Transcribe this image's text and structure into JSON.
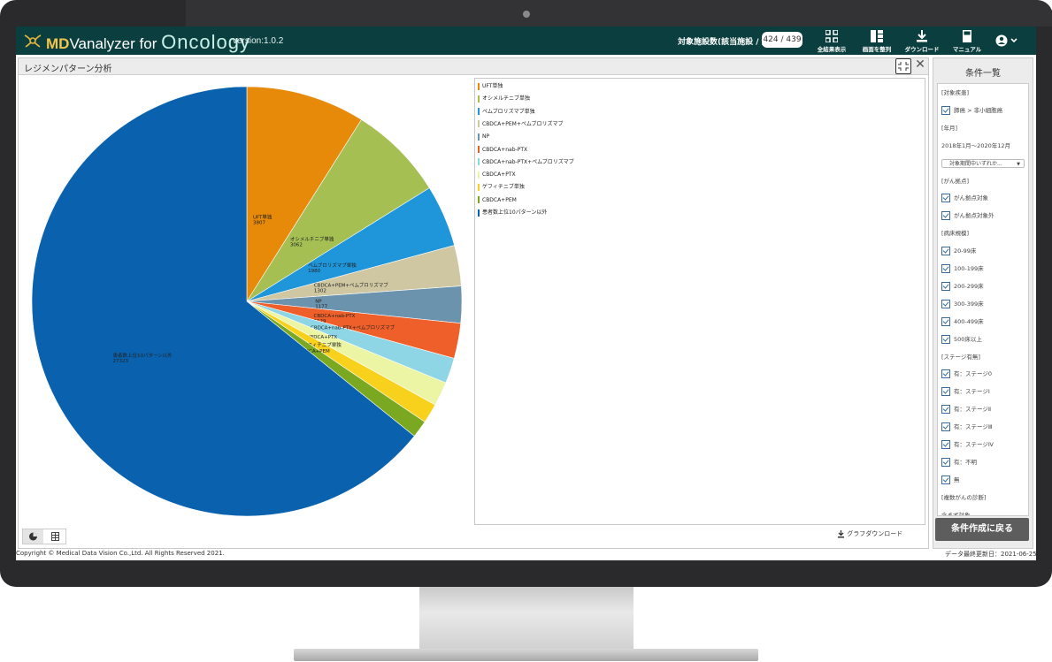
{
  "header": {
    "logo_prefix": "MD",
    "logo_mid": "Vanalyzer for ",
    "logo_brand": "Oncology",
    "version": "version:1.0.2",
    "target_label": "対象施設数(該当施設 / 全体)",
    "target_count": "424 / 439",
    "buttons": [
      {
        "label": "全結果表示",
        "icon": "grid-icon"
      },
      {
        "label": "画面を整列",
        "icon": "layout-icon"
      },
      {
        "label": "ダウンロード",
        "icon": "download-icon"
      },
      {
        "label": "マニュアル",
        "icon": "book-icon"
      }
    ],
    "user_icon": "user-circle-icon"
  },
  "panel": {
    "title": "レジメンパターン分析",
    "graph_download": "グラフダウンロード"
  },
  "chart_data": {
    "type": "pie",
    "title": "",
    "start_angle": "12 o'clock",
    "direction": "clockwise",
    "slices": [
      {
        "label": "UFT単独",
        "value": 3807,
        "color": "#e78a0a"
      },
      {
        "label": "オシメルチニブ単独",
        "value": 3062,
        "color": "#a5bf52"
      },
      {
        "label": "ペムブロリズマブ単独",
        "value": 1980,
        "color": "#1f95da"
      },
      {
        "label": "CBDCA+PEM+ペムブロリズマブ",
        "value": 1302,
        "color": "#cfc7a2"
      },
      {
        "label": "NP",
        "value": 1177,
        "color": "#6b93ae"
      },
      {
        "label": "CBDCA+nab-PTX",
        "value": 1129,
        "color": "#ef5f2a"
      },
      {
        "label": "CBDCA+nab-PTX+ペムブロリズマブ",
        "value": 815,
        "color": "#8ed5e6"
      },
      {
        "label": "CBDCA+PTX",
        "value": 770,
        "color": "#ecf5a4"
      },
      {
        "label": "ゲフィチニブ単独",
        "value": 633,
        "color": "#f8d11c"
      },
      {
        "label": "CBDCA+PEM",
        "value": 553,
        "color": "#7aa820"
      },
      {
        "label": "患者数上位10パターン以外",
        "value": 27323,
        "color": "#0a62af"
      }
    ],
    "slice_labels": [
      {
        "name": "UFT単独",
        "value": "3807"
      },
      {
        "name": "オシメルチニブ単独",
        "value": "3062"
      },
      {
        "name": "ペムブロリズマブ単独",
        "value": "1980"
      },
      {
        "name": "CBDCA+PEM+ペムブロリズマブ",
        "value": "1302"
      },
      {
        "name": "NP",
        "value": "1177"
      },
      {
        "name": "CBDCA+nab-PTX",
        "value": "1129"
      },
      {
        "name": "CBDCA+nab-PTX+ペムブロリズマブ",
        "value": "815"
      },
      {
        "name": "CBDCA+PTX",
        "value": "770"
      },
      {
        "name": "ゲフィチニブ単独",
        "value": "633"
      },
      {
        "name": "CBDCA+PEM",
        "value": "553"
      },
      {
        "name": "患者数上位10パターン以外",
        "value": "27323"
      }
    ],
    "legend_placement": "right"
  },
  "sidebar": {
    "title": "条件一覧",
    "items": [
      {
        "kind": "header",
        "text": "[対象疾患]"
      },
      {
        "kind": "check",
        "text": "肺癌 > 非小細胞癌"
      },
      {
        "kind": "header",
        "text": "[年月]"
      },
      {
        "kind": "text",
        "text": "2018年1月～2020年12月"
      },
      {
        "kind": "select",
        "text": "対象期間中いずれか..."
      },
      {
        "kind": "header",
        "text": "[がん拠点]"
      },
      {
        "kind": "check",
        "text": "がん拠点対象"
      },
      {
        "kind": "check",
        "text": "がん拠点対象外"
      },
      {
        "kind": "header",
        "text": "[病床規模]"
      },
      {
        "kind": "check",
        "text": "20-99床"
      },
      {
        "kind": "check",
        "text": "100-199床"
      },
      {
        "kind": "check",
        "text": "200-299床"
      },
      {
        "kind": "check",
        "text": "300-399床"
      },
      {
        "kind": "check",
        "text": "400-499床"
      },
      {
        "kind": "check",
        "text": "500床以上"
      },
      {
        "kind": "header",
        "text": "[ステージ有無]"
      },
      {
        "kind": "check",
        "text": "有：ステージ0"
      },
      {
        "kind": "check",
        "text": "有：ステージⅠ"
      },
      {
        "kind": "check",
        "text": "有：ステージⅡ"
      },
      {
        "kind": "check",
        "text": "有：ステージⅢ"
      },
      {
        "kind": "check",
        "text": "有：ステージⅣ"
      },
      {
        "kind": "check",
        "text": "有：不明"
      },
      {
        "kind": "check",
        "text": "無"
      },
      {
        "kind": "header",
        "text": "[複数がんの診断]"
      },
      {
        "kind": "text",
        "text": "含まず対象"
      }
    ],
    "back_button": "条件作成に戻る"
  },
  "footer": {
    "copyright": "Copyright © Medical Data Vision Co.,Ltd. All Rights Reserved 2021.",
    "data_date": "データ最終更新日：2021-06-25"
  }
}
